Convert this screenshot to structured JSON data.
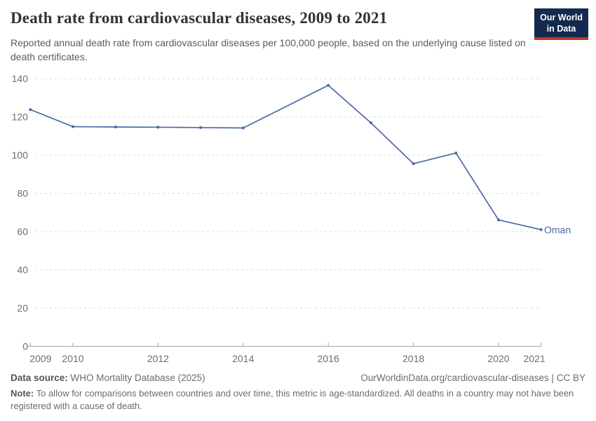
{
  "chart_data": {
    "type": "line",
    "title": "Death rate from cardiovascular diseases, 2009 to 2021",
    "subtitle": "Reported annual death rate from cardiovascular diseases per 100,000 people, based on the underlying cause listed on death certificates.",
    "xlabel": "",
    "ylabel": "",
    "xlim": [
      2009,
      2021
    ],
    "ylim": [
      0,
      140
    ],
    "x_ticks": [
      2009,
      2010,
      2012,
      2014,
      2016,
      2018,
      2020,
      2021
    ],
    "y_ticks": [
      0,
      20,
      40,
      60,
      80,
      100,
      120,
      140
    ],
    "grid": "horizontal-dashed",
    "legend_position": "end-of-line-label",
    "missing_years": [
      2015
    ],
    "series": [
      {
        "name": "Oman",
        "color": "#4B69A5",
        "data": [
          {
            "year": 2009,
            "value": 123.8
          },
          {
            "year": 2010,
            "value": 114.9
          },
          {
            "year": 2011,
            "value": 114.7
          },
          {
            "year": 2012,
            "value": 114.6
          },
          {
            "year": 2013,
            "value": 114.4
          },
          {
            "year": 2014,
            "value": 114.2
          },
          {
            "year": 2016,
            "value": 136.5
          },
          {
            "year": 2017,
            "value": 116.9
          },
          {
            "year": 2018,
            "value": 95.5
          },
          {
            "year": 2019,
            "value": 101.1
          },
          {
            "year": 2020,
            "value": 66.1
          },
          {
            "year": 2021,
            "value": 61.0
          }
        ]
      }
    ]
  },
  "logo": {
    "line1": "Our World",
    "line2": "in Data",
    "bg_color": "#132A4E",
    "accent_color": "#C5332B"
  },
  "footer": {
    "datasource_label": "Data source:",
    "datasource_value": "WHO Mortality Database (2025)",
    "link": "OurWorldinData.org/cardiovascular-diseases | CC BY",
    "note_label": "Note:",
    "note_text": "To allow for comparisons between countries and over time, this metric is age-standardized. All deaths in a country may not have been registered with a cause of death."
  },
  "colors": {
    "grid": "#dcdcdc",
    "axis": "#a3a3a3",
    "tick_label": "#6e6e6e"
  }
}
